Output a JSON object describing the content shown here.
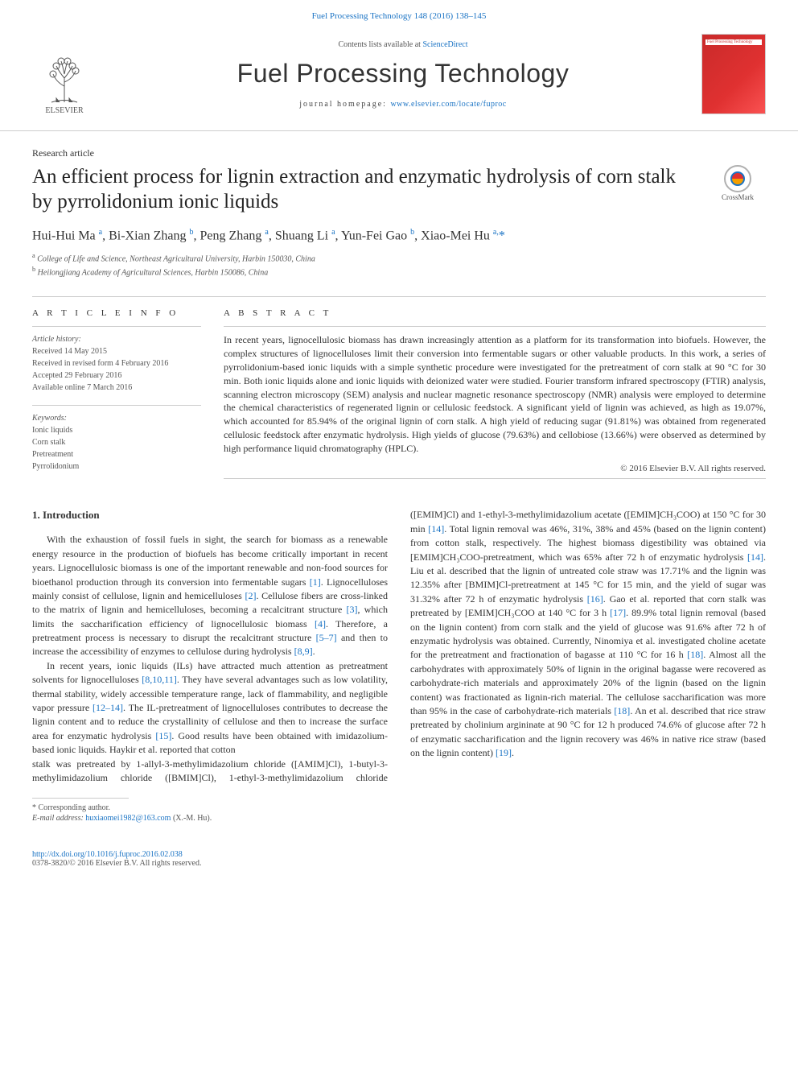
{
  "colors": {
    "link": "#1a73c4",
    "text": "#333333",
    "muted": "#555555",
    "rule": "#cccccc",
    "cover_grad_from": "#c92a2a",
    "cover_grad_to": "#fa5252",
    "background": "#ffffff"
  },
  "typography": {
    "body_family": "Georgia, 'Times New Roman', serif",
    "journal_family": "'Trebuchet MS', Arial, sans-serif",
    "title_fontsize_pt": 19,
    "journal_fontsize_pt": 24,
    "body_fontsize_pt": 9,
    "info_fontsize_pt": 7.5
  },
  "topbar": {
    "citation": "Fuel Processing Technology 148 (2016) 138–145"
  },
  "header": {
    "contents_line_prefix": "Contents lists available at ",
    "contents_line_link": "ScienceDirect",
    "journal_name": "Fuel Processing Technology",
    "homepage_prefix": "journal homepage: ",
    "homepage_url": "www.elsevier.com/locate/fuproc",
    "publisher_name": "ELSEVIER",
    "cover_label": "Fuel Processing Technology"
  },
  "article": {
    "type": "Research article",
    "title": "An efficient process for lignin extraction and enzymatic hydrolysis of corn stalk by pyrrolidonium ionic liquids",
    "crossmark_label": "CrossMark",
    "authors": [
      {
        "name": "Hui-Hui Ma",
        "aff": "a"
      },
      {
        "name": "Bi-Xian Zhang",
        "aff": "b"
      },
      {
        "name": "Peng Zhang",
        "aff": "a"
      },
      {
        "name": "Shuang Li",
        "aff": "a"
      },
      {
        "name": "Yun-Fei Gao",
        "aff": "b"
      },
      {
        "name": "Xiao-Mei Hu",
        "aff": "a",
        "corr": true
      }
    ],
    "affiliations": [
      {
        "key": "a",
        "text": "College of Life and Science, Northeast Agricultural University, Harbin 150030, China"
      },
      {
        "key": "b",
        "text": "Heilongjiang Academy of Agricultural Sciences, Harbin 150086, China"
      }
    ]
  },
  "info": {
    "heading": "A R T I C L E   I N F O",
    "history_label": "Article history:",
    "history": [
      "Received 14 May 2015",
      "Received in revised form 4 February 2016",
      "Accepted 29 February 2016",
      "Available online 7 March 2016"
    ],
    "keywords_label": "Keywords:",
    "keywords": [
      "Ionic liquids",
      "Corn stalk",
      "Pretreatment",
      "Pyrrolidonium"
    ]
  },
  "abstract": {
    "heading": "A B S T R A C T",
    "text": "In recent years, lignocellulosic biomass has drawn increasingly attention as a platform for its transformation into biofuels. However, the complex structures of lignocelluloses limit their conversion into fermentable sugars or other valuable products. In this work, a series of pyrrolidonium-based ionic liquids with a simple synthetic procedure were investigated for the pretreatment of corn stalk at 90 °C for 30 min. Both ionic liquids alone and ionic liquids with deionized water were studied. Fourier transform infrared spectroscopy (FTIR) analysis, scanning electron microscopy (SEM) analysis and nuclear magnetic resonance spectroscopy (NMR) analysis were employed to determine the chemical characteristics of regenerated lignin or cellulosic feedstock. A significant yield of lignin was achieved, as high as 19.07%, which accounted for 85.94% of the original lignin of corn stalk. A high yield of reducing sugar (91.81%) was obtained from regenerated cellulosic feedstock after enzymatic hydrolysis. High yields of glucose (79.63%) and cellobiose (13.66%) were observed as determined by high performance liquid chromatography (HPLC).",
    "copyright": "© 2016 Elsevier B.V. All rights reserved."
  },
  "body": {
    "section_heading": "1. Introduction",
    "p1": "With the exhaustion of fossil fuels in sight, the search for biomass as a renewable energy resource in the production of biofuels has become critically important in recent years. Lignocellulosic biomass is one of the important renewable and non-food sources for bioethanol production through its conversion into fermentable sugars [1]. Lignocelluloses mainly consist of cellulose, lignin and hemicelluloses [2]. Cellulose fibers are cross-linked to the matrix of lignin and hemicelluloses, becoming a recalcitrant structure [3], which limits the saccharification efficiency of lignocellulosic biomass [4]. Therefore, a pretreatment process is necessary to disrupt the recalcitrant structure [5–7] and then to increase the accessibility of enzymes to cellulose during hydrolysis [8,9].",
    "p2": "In recent years, ionic liquids (ILs) have attracted much attention as pretreatment solvents for lignocelluloses [8,10,11]. They have several advantages such as low volatility, thermal stability, widely accessible temperature range, lack of flammability, and negligible vapor pressure [12–14]. The IL-pretreatment of lignocelluloses contributes to decrease the lignin content and to reduce the crystallinity of cellulose and then to increase the surface area for enzymatic hydrolysis [15]. Good results have been obtained with imidazolium-based ionic liquids. Haykir et al. reported that cotton",
    "p3": "stalk was pretreated by 1-allyl-3-methylimidazolium chloride ([AMIM]Cl), 1-butyl-3-methylimidazolium chloride ([BMIM]Cl), 1-ethyl-3-methylimidazolium chloride ([EMIM]Cl) and 1-ethyl-3-methylimidazolium acetate ([EMIM]CH₃COO) at 150 °C for 30 min [14]. Total lignin removal was 46%, 31%, 38% and 45% (based on the lignin content) from cotton stalk, respectively. The highest biomass digestibility was obtained via [EMIM]CH₃COO-pretreatment, which was 65% after 72 h of enzymatic hydrolysis [14]. Liu et al. described that the lignin of untreated cole straw was 17.71% and the lignin was 12.35% after [BMIM]Cl-pretreatment at 145 °C for 15 min, and the yield of sugar was 31.32% after 72 h of enzymatic hydrolysis [16]. Gao et al. reported that corn stalk was pretreated by [EMIM]CH₃COO at 140 °C for 3 h [17]. 89.9% total lignin removal (based on the lignin content) from corn stalk and the yield of glucose was 91.6% after 72 h of enzymatic hydrolysis was obtained. Currently, Ninomiya et al. investigated choline acetate for the pretreatment and fractionation of bagasse at 110 °C for 16 h [18]. Almost all the carbohydrates with approximately 50% of lignin in the original bagasse were recovered as carbohydrate-rich materials and approximately 20% of the lignin (based on the lignin content) was fractionated as lignin-rich material. The cellulose saccharification was more than 95% in the case of carbohydrate-rich materials [18]. An et al. described that rice straw pretreated by cholinium argininate at 90 °C for 12 h produced 74.6% of glucose after 72 h of enzymatic saccharification and the lignin recovery was 46% in native rice straw (based on the lignin content) [19]."
  },
  "footer": {
    "corr_label": "* Corresponding author.",
    "email_label": "E-mail address:",
    "email": "huxiaomei1982@163.com",
    "email_person": "(X.-M. Hu).",
    "doi_url": "http://dx.doi.org/10.1016/j.fuproc.2016.02.038",
    "issn_line": "0378-3820/© 2016 Elsevier B.V. All rights reserved."
  }
}
